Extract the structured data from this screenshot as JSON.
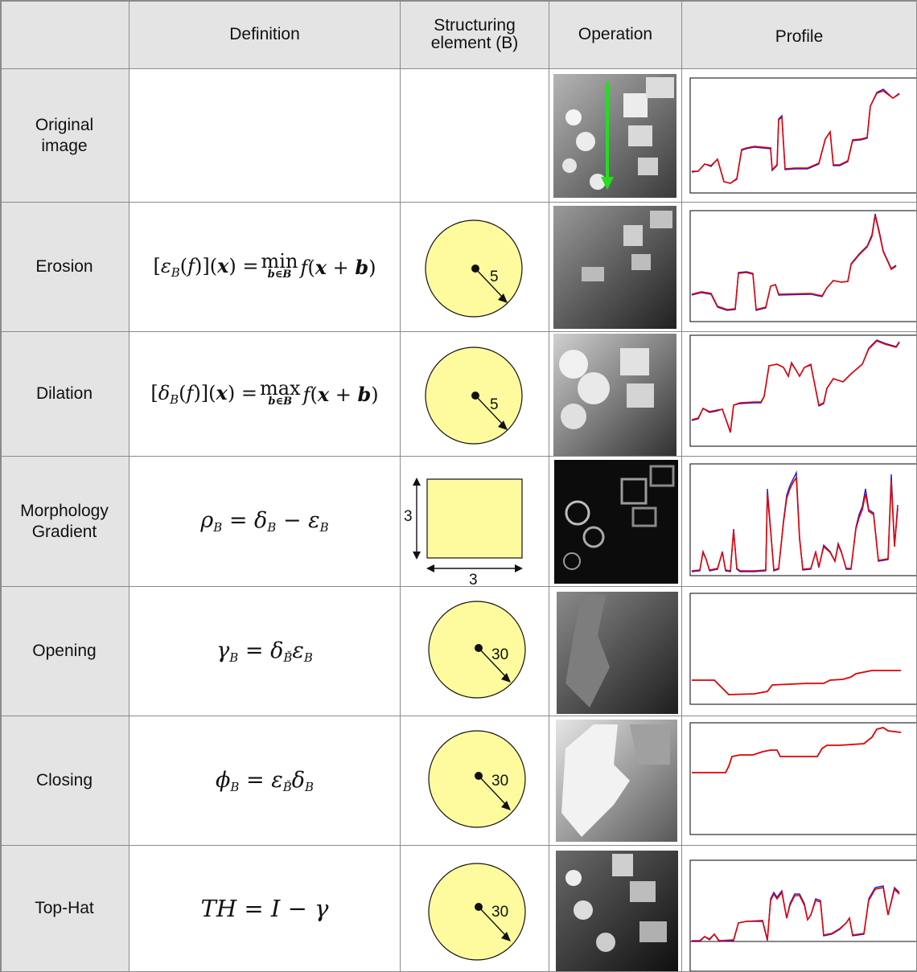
{
  "header": {
    "definition": "Definition",
    "structuring": "Structuring element (B)",
    "operation": "Operation",
    "profile": "Profile"
  },
  "rows": [
    {
      "label": "Original\nimage",
      "radius_label": ""
    },
    {
      "label": "Erosion",
      "radius_label": "5"
    },
    {
      "label": "Dilation",
      "radius_label": "5"
    },
    {
      "label": "Morphology\nGradient",
      "square_w": "3",
      "square_h": "3"
    },
    {
      "label": "Opening",
      "radius_label": "30"
    },
    {
      "label": "Closing",
      "radius_label": "30"
    },
    {
      "label": "Top-Hat",
      "radius_label": "30"
    }
  ],
  "colors": {
    "header_bg": "#e4e4e4",
    "struct_fill": "#fdfb9e",
    "profile_red": "#e00000",
    "profile_blue": "#1a1ae6",
    "arrow_green": "#22dd22"
  },
  "icons": {
    "structuring_disk": "disk-icon",
    "structuring_square": "square-icon",
    "profile_direction": "green-arrow-icon"
  }
}
